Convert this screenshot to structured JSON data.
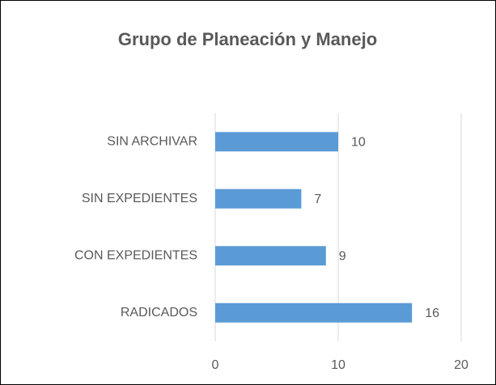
{
  "chart_data": {
    "type": "bar",
    "orientation": "horizontal",
    "title": "Grupo de Planeación y Manejo",
    "categories": [
      "SIN ARCHIVAR",
      "SIN EXPEDIENTES",
      "CON EXPEDIENTES",
      "RADICADOS"
    ],
    "values": [
      10,
      7,
      9,
      16
    ],
    "color": "#5b9bd5",
    "xlim": [
      0,
      20
    ],
    "xticks": [
      0,
      10,
      20
    ],
    "grid": true
  }
}
